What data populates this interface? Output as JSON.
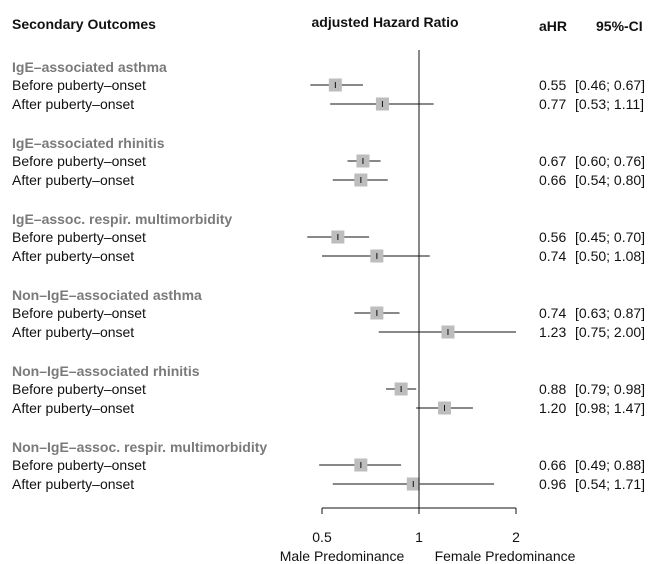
{
  "chart_data": {
    "type": "forest",
    "headers": {
      "outcomes": "Secondary Outcomes",
      "ratio": "adjusted Hazard Ratio",
      "ahr": "aHR",
      "ci": "95%-CI"
    },
    "x_scale": "log",
    "xlim": [
      0.38,
      2.3
    ],
    "reference_line": 1,
    "x_ticks": [
      "0.5",
      "1",
      "2"
    ],
    "x_tick_values": [
      0.5,
      1,
      2
    ],
    "xlabel_left": "Male Predominance",
    "xlabel_right": "Female Predominance",
    "marker_color": "#bdbdbd",
    "group_label_color": "#7a7a7a",
    "groups": [
      {
        "name": "IgE–associated asthma",
        "rows": [
          {
            "label": "Before puberty–onset",
            "ahr": 0.55,
            "lo": 0.46,
            "hi": 0.67,
            "ahr_text": "0.55",
            "ci_text": "[0.46; 0.67]"
          },
          {
            "label": "After puberty–onset",
            "ahr": 0.77,
            "lo": 0.53,
            "hi": 1.11,
            "ahr_text": "0.77",
            "ci_text": "[0.53; 1.11]"
          }
        ]
      },
      {
        "name": "IgE–associated rhinitis",
        "rows": [
          {
            "label": "Before puberty–onset",
            "ahr": 0.67,
            "lo": 0.6,
            "hi": 0.76,
            "ahr_text": "0.67",
            "ci_text": "[0.60; 0.76]"
          },
          {
            "label": "After puberty–onset",
            "ahr": 0.66,
            "lo": 0.54,
            "hi": 0.8,
            "ahr_text": "0.66",
            "ci_text": "[0.54; 0.80]"
          }
        ]
      },
      {
        "name": "IgE–assoc. respir. multimorbidity",
        "rows": [
          {
            "label": "Before puberty–onset",
            "ahr": 0.56,
            "lo": 0.45,
            "hi": 0.7,
            "ahr_text": "0.56",
            "ci_text": "[0.45; 0.70]"
          },
          {
            "label": "After puberty–onset",
            "ahr": 0.74,
            "lo": 0.5,
            "hi": 1.08,
            "ahr_text": "0.74",
            "ci_text": "[0.50; 1.08]"
          }
        ]
      },
      {
        "name": "Non–IgE–associated asthma",
        "rows": [
          {
            "label": "Before puberty–onset",
            "ahr": 0.74,
            "lo": 0.63,
            "hi": 0.87,
            "ahr_text": "0.74",
            "ci_text": "[0.63; 0.87]"
          },
          {
            "label": "After puberty–onset",
            "ahr": 1.23,
            "lo": 0.75,
            "hi": 2.0,
            "ahr_text": "1.23",
            "ci_text": "[0.75; 2.00]"
          }
        ]
      },
      {
        "name": "Non–IgE–associated rhinitis",
        "rows": [
          {
            "label": "Before puberty–onset",
            "ahr": 0.88,
            "lo": 0.79,
            "hi": 0.98,
            "ahr_text": "0.88",
            "ci_text": "[0.79; 0.98]"
          },
          {
            "label": "After puberty–onset",
            "ahr": 1.2,
            "lo": 0.98,
            "hi": 1.47,
            "ahr_text": "1.20",
            "ci_text": "[0.98; 1.47]"
          }
        ]
      },
      {
        "name": "Non–IgE–assoc. respir. multimorbidity",
        "rows": [
          {
            "label": "Before puberty–onset",
            "ahr": 0.66,
            "lo": 0.49,
            "hi": 0.88,
            "ahr_text": "0.66",
            "ci_text": "[0.49; 0.88]"
          },
          {
            "label": "After puberty–onset",
            "ahr": 0.96,
            "lo": 0.54,
            "hi": 1.71,
            "ahr_text": "0.96",
            "ci_text": "[0.54; 1.71]"
          }
        ]
      }
    ]
  }
}
